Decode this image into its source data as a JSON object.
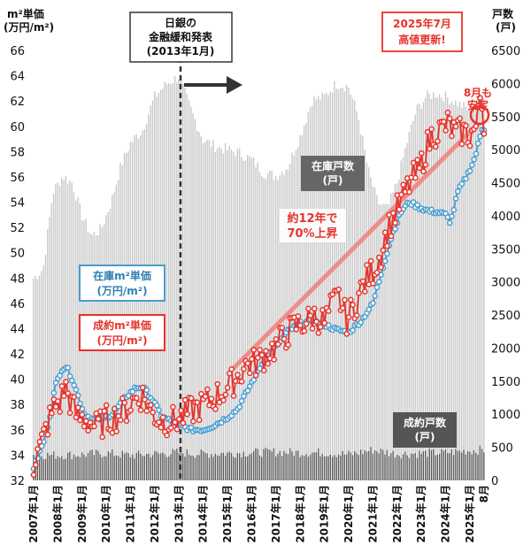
{
  "chart_data": {
    "type": "line",
    "title": "",
    "left_axis": {
      "title": [
        "m²単価",
        "(万円/m²)"
      ],
      "ylim": [
        32,
        66
      ],
      "ticks": [
        32,
        34,
        36,
        38,
        40,
        42,
        44,
        46,
        48,
        50,
        52,
        54,
        56,
        58,
        60,
        62,
        64,
        66
      ]
    },
    "right_axis": {
      "title": [
        "戸数",
        "(戸)"
      ],
      "ylim": [
        0,
        6500
      ],
      "ticks": [
        0,
        500,
        1000,
        1500,
        2000,
        2500,
        3000,
        3500,
        4000,
        4500,
        5000,
        5500,
        6000,
        6500
      ]
    },
    "x_ticks": [
      "2007年1月",
      "2008年1月",
      "2009年1月",
      "2010年1月",
      "2011年1月",
      "2012年1月",
      "2013年1月",
      "2014年1月",
      "2015年1月",
      "2016年1月",
      "2017年1月",
      "2018年1月",
      "2019年1月",
      "2020年1月",
      "2021年1月",
      "2022年1月",
      "2023年1月",
      "2024年1月",
      "2025年1月",
      "8月"
    ],
    "grid": false,
    "series": [
      {
        "name": "在庫m²単価",
        "label": [
          "在庫m²単価",
          "(万円/m²)"
        ],
        "axis": "left",
        "color": "#4a9cd0",
        "style": "line-markers",
        "anchors": [
          [
            2007.0,
            33.0
          ],
          [
            2007.5,
            35.5
          ],
          [
            2007.9,
            39.5
          ],
          [
            2008.15,
            40.8
          ],
          [
            2008.35,
            41.0
          ],
          [
            2008.6,
            40.0
          ],
          [
            2008.9,
            38.3
          ],
          [
            2009.1,
            37.2
          ],
          [
            2009.5,
            36.8
          ],
          [
            2009.9,
            36.9
          ],
          [
            2010.3,
            37.3
          ],
          [
            2010.8,
            38.6
          ],
          [
            2011.2,
            39.3
          ],
          [
            2011.5,
            39.4
          ],
          [
            2011.9,
            38.4
          ],
          [
            2012.3,
            37.0
          ],
          [
            2012.8,
            36.6
          ],
          [
            2013.1,
            36.3
          ],
          [
            2013.5,
            36.0
          ],
          [
            2014.0,
            36.0
          ],
          [
            2014.5,
            36.4
          ],
          [
            2015.0,
            37.0
          ],
          [
            2015.4,
            37.6
          ],
          [
            2015.8,
            39.0
          ],
          [
            2016.2,
            40.5
          ],
          [
            2016.6,
            41.8
          ],
          [
            2017.0,
            42.6
          ],
          [
            2017.5,
            43.8
          ],
          [
            2018.0,
            44.4
          ],
          [
            2018.5,
            44.6
          ],
          [
            2019.0,
            44.3
          ],
          [
            2019.5,
            43.9
          ],
          [
            2020.0,
            43.7
          ],
          [
            2020.5,
            44.6
          ],
          [
            2021.0,
            46.0
          ],
          [
            2021.4,
            48.8
          ],
          [
            2021.8,
            51.5
          ],
          [
            2022.2,
            53.4
          ],
          [
            2022.5,
            54.0
          ],
          [
            2022.9,
            53.6
          ],
          [
            2023.3,
            53.3
          ],
          [
            2023.7,
            53.2
          ],
          [
            2024.0,
            53.0
          ],
          [
            2024.2,
            52.4
          ],
          [
            2024.5,
            54.8
          ],
          [
            2024.9,
            56.2
          ],
          [
            2025.2,
            57.5
          ],
          [
            2025.5,
            59.8
          ]
        ]
      },
      {
        "name": "成約m²単価",
        "label": [
          "成約m²単価",
          "(万円/m²)"
        ],
        "axis": "left",
        "color": "#e8322b",
        "style": "line-markers",
        "anchors": [
          [
            2007.0,
            33.3
          ],
          [
            2007.3,
            34.8
          ],
          [
            2007.6,
            36.6
          ],
          [
            2007.9,
            38.0
          ],
          [
            2008.1,
            38.2
          ],
          [
            2008.3,
            39.5
          ],
          [
            2008.5,
            38.3
          ],
          [
            2008.8,
            37.0
          ],
          [
            2009.2,
            36.8
          ],
          [
            2009.6,
            36.2
          ],
          [
            2010.0,
            36.8
          ],
          [
            2010.4,
            37.0
          ],
          [
            2010.8,
            37.6
          ],
          [
            2011.2,
            38.5
          ],
          [
            2011.5,
            38.7
          ],
          [
            2011.9,
            37.3
          ],
          [
            2012.3,
            36.7
          ],
          [
            2012.8,
            36.7
          ],
          [
            2013.1,
            37.0
          ],
          [
            2013.5,
            37.5
          ],
          [
            2014.0,
            38.0
          ],
          [
            2014.5,
            38.6
          ],
          [
            2015.0,
            39.3
          ],
          [
            2015.4,
            40.2
          ],
          [
            2015.8,
            41.2
          ],
          [
            2016.2,
            41.3
          ],
          [
            2016.6,
            42.0
          ],
          [
            2017.0,
            42.6
          ],
          [
            2017.4,
            43.5
          ],
          [
            2017.8,
            44.2
          ],
          [
            2018.2,
            44.5
          ],
          [
            2018.6,
            45.0
          ],
          [
            2019.0,
            44.5
          ],
          [
            2019.3,
            45.8
          ],
          [
            2019.6,
            46.5
          ],
          [
            2019.9,
            44.7
          ],
          [
            2020.2,
            45.6
          ],
          [
            2020.6,
            47.5
          ],
          [
            2021.0,
            48.6
          ],
          [
            2021.3,
            49.8
          ],
          [
            2021.6,
            51.8
          ],
          [
            2021.9,
            53.0
          ],
          [
            2022.2,
            54.2
          ],
          [
            2022.6,
            55.8
          ],
          [
            2022.9,
            56.4
          ],
          [
            2023.2,
            58.3
          ],
          [
            2023.5,
            59.5
          ],
          [
            2023.8,
            59.7
          ],
          [
            2024.1,
            60.2
          ],
          [
            2024.4,
            59.4
          ],
          [
            2024.7,
            59.6
          ],
          [
            2025.0,
            59.3
          ],
          [
            2025.3,
            60.0
          ],
          [
            2025.45,
            63.0
          ],
          [
            2025.55,
            60.4
          ]
        ]
      },
      {
        "name": "在庫戸数",
        "label": [
          "在庫戸数",
          "(戸)"
        ],
        "axis": "right",
        "color": "#c8c8c8",
        "style": "bars",
        "anchors": [
          [
            2007.0,
            3050
          ],
          [
            2007.4,
            3200
          ],
          [
            2007.8,
            4350
          ],
          [
            2008.2,
            4600
          ],
          [
            2008.6,
            4500
          ],
          [
            2009.0,
            4000
          ],
          [
            2009.4,
            3700
          ],
          [
            2009.8,
            3800
          ],
          [
            2010.2,
            4200
          ],
          [
            2010.6,
            4750
          ],
          [
            2011.0,
            5100
          ],
          [
            2011.5,
            5300
          ],
          [
            2012.0,
            5800
          ],
          [
            2012.5,
            6000
          ],
          [
            2013.0,
            6100
          ],
          [
            2013.5,
            5600
          ],
          [
            2014.0,
            5150
          ],
          [
            2014.5,
            5050
          ],
          [
            2015.0,
            5000
          ],
          [
            2015.5,
            4950
          ],
          [
            2016.0,
            4850
          ],
          [
            2016.5,
            4650
          ],
          [
            2017.0,
            4600
          ],
          [
            2017.5,
            4750
          ],
          [
            2018.0,
            5200
          ],
          [
            2018.5,
            5750
          ],
          [
            2019.0,
            5800
          ],
          [
            2019.5,
            6000
          ],
          [
            2020.0,
            5950
          ],
          [
            2020.4,
            5500
          ],
          [
            2020.8,
            4700
          ],
          [
            2021.2,
            4200
          ],
          [
            2021.6,
            4100
          ],
          [
            2022.0,
            4500
          ],
          [
            2022.4,
            5100
          ],
          [
            2022.8,
            5600
          ],
          [
            2023.2,
            5800
          ],
          [
            2023.6,
            5850
          ],
          [
            2024.0,
            5800
          ],
          [
            2024.5,
            5700
          ],
          [
            2025.0,
            5600
          ],
          [
            2025.5,
            5800
          ]
        ]
      },
      {
        "name": "成約戸数",
        "label": [
          "成約戸数",
          "(戸)"
        ],
        "axis": "right",
        "color": "#555555",
        "style": "bars",
        "anchors": [
          [
            2007.0,
            390
          ],
          [
            2008.0,
            380
          ],
          [
            2009.0,
            390
          ],
          [
            2010.0,
            410
          ],
          [
            2011.0,
            380
          ],
          [
            2012.0,
            400
          ],
          [
            2013.0,
            420
          ],
          [
            2014.0,
            400
          ],
          [
            2015.0,
            410
          ],
          [
            2016.0,
            420
          ],
          [
            2017.0,
            430
          ],
          [
            2018.0,
            420
          ],
          [
            2019.0,
            420
          ],
          [
            2020.0,
            390
          ],
          [
            2021.0,
            460
          ],
          [
            2022.0,
            400
          ],
          [
            2023.0,
            410
          ],
          [
            2024.0,
            420
          ],
          [
            2025.0,
            450
          ],
          [
            2025.6,
            460
          ]
        ]
      }
    ],
    "annotations": {
      "boj": [
        "日銀の",
        "金融緩和発表",
        "(2013年1月)"
      ],
      "rise": [
        "約12年で",
        "70%上昇"
      ],
      "record": [
        "2025年7月",
        "高値更新!"
      ],
      "aug": [
        "8月も",
        "安定"
      ]
    }
  }
}
